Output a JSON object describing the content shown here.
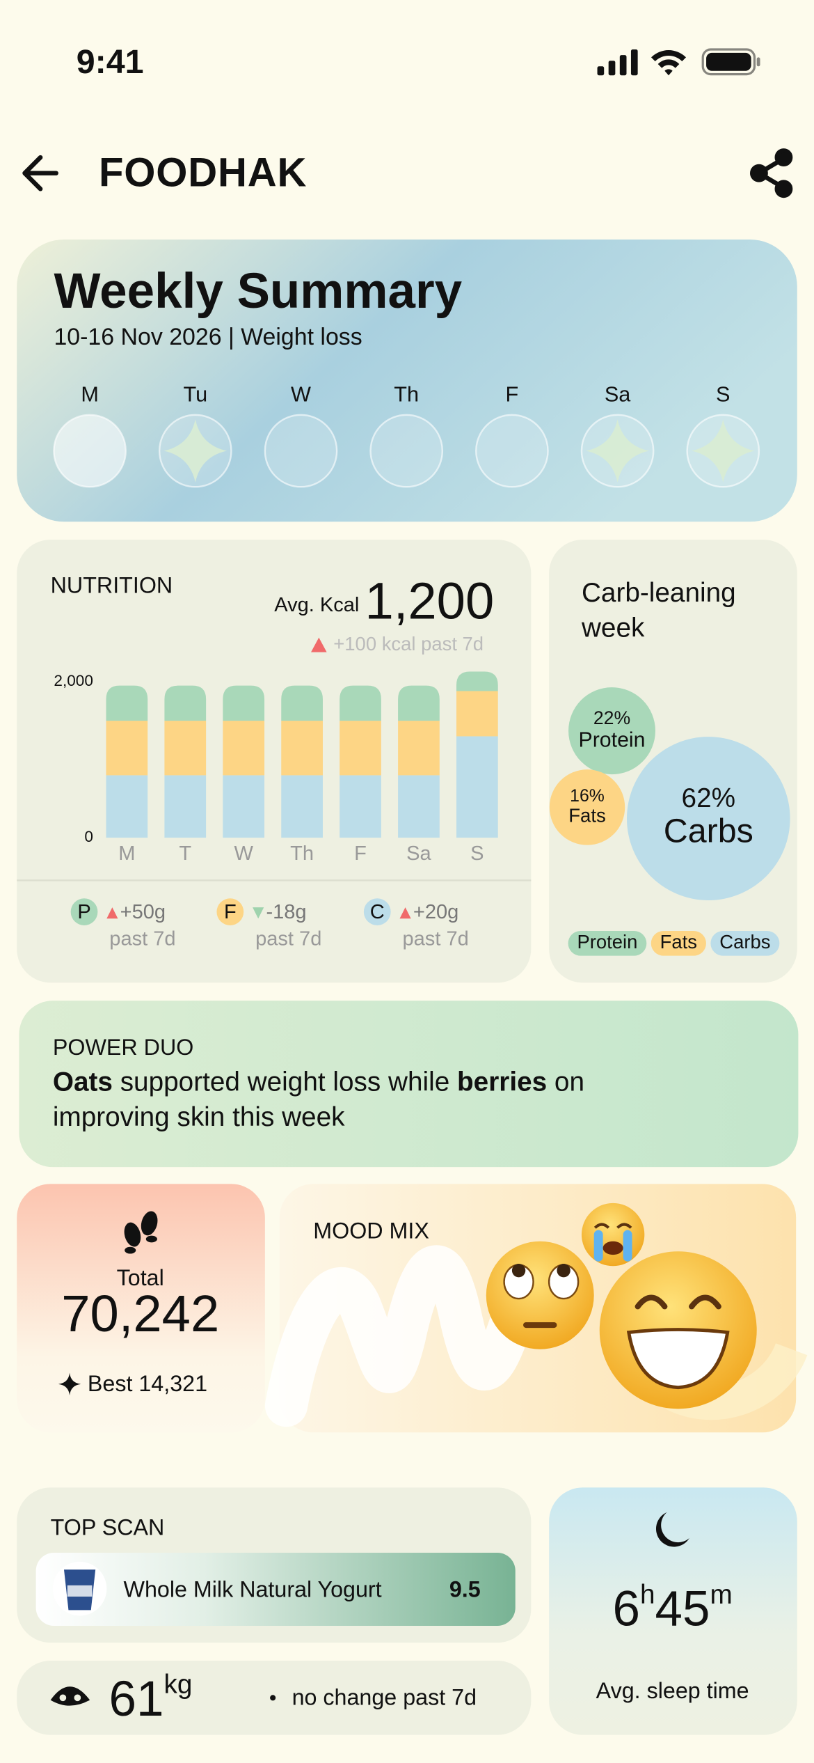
{
  "status_bar": {
    "time": "9:41"
  },
  "header": {
    "brand": "FOODHAK"
  },
  "weekly_summary": {
    "title": "Weekly Summary",
    "subtitle": "10-16 Nov 2026 | Weight loss",
    "days": [
      "M",
      "Tu",
      "W",
      "Th",
      "F",
      "Sa",
      "S"
    ],
    "starred": [
      false,
      true,
      false,
      false,
      false,
      true,
      true
    ]
  },
  "chart_data": [
    {
      "type": "bar",
      "stacked": true,
      "title": "NUTRITION",
      "categories": [
        "M",
        "T",
        "W",
        "Th",
        "F",
        "Sa",
        "S"
      ],
      "series": [
        {
          "name": "Carbs",
          "color": "#bcdde9",
          "values": [
            800,
            800,
            800,
            800,
            800,
            800,
            1300
          ]
        },
        {
          "name": "Fats",
          "color": "#fdd585",
          "values": [
            700,
            700,
            700,
            700,
            700,
            700,
            580
          ]
        },
        {
          "name": "Protein",
          "color": "#a9d8b9",
          "values": [
            450,
            450,
            450,
            450,
            450,
            450,
            250
          ]
        }
      ],
      "ylim": [
        0,
        2120
      ],
      "yticks": [
        0,
        {
          "value": 2000,
          "label": "2,000"
        }
      ],
      "grid": false
    },
    {
      "type": "bubble",
      "title": "Carb-leaning week",
      "categories": [
        "Protein",
        "Fats",
        "Carbs"
      ],
      "values": [
        22,
        16,
        62
      ],
      "value_labels": [
        "22%",
        "16%",
        "62%"
      ],
      "colors": [
        "#a9d8b9",
        "#fdd585",
        "#bcdde9"
      ]
    }
  ],
  "nutrition_summary": {
    "avg_label": "Avg. Kcal",
    "avg_value": "1,200",
    "trend": "+100 kcal past 7d",
    "changes": [
      {
        "letter": "P",
        "change": "+50g",
        "period": "past 7d"
      },
      {
        "letter": "F",
        "change": "-18g",
        "period": "past 7d"
      },
      {
        "letter": "C",
        "change": "+20g",
        "period": "past 7d"
      }
    ]
  },
  "power_duo": {
    "label": "POWER DUO",
    "line1": [
      "Oats",
      " supported weight loss while ",
      "berries",
      " on"
    ],
    "line2": "improving skin this week"
  },
  "steps": {
    "label": "Total",
    "total": "70,242",
    "best": "Best 14,321"
  },
  "mood_mix": {
    "title": "MOOD MIX"
  },
  "top_scan": {
    "title": "TOP SCAN",
    "product": "Whole Milk Natural Yogurt",
    "score": "9.5"
  },
  "weight": {
    "value": "61",
    "unit": "kg",
    "note": "no change past 7d"
  },
  "sleep": {
    "hours": "6",
    "hours_unit": "h",
    "minutes": "45",
    "minutes_unit": "m",
    "label": "Avg. sleep time"
  }
}
